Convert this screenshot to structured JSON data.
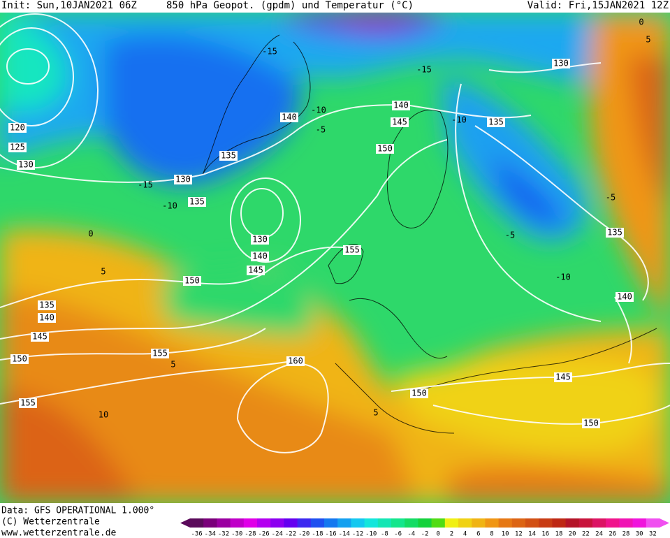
{
  "header": {
    "init": "Init: Sun,10JAN2021 06Z",
    "title": "850 hPa Geopot. (gpdm) und Temperatur (°C)",
    "valid": "Valid: Fri,15JAN2021 12Z"
  },
  "footer": {
    "source": "Data: GFS OPERATIONAL 1.000°",
    "copyright": "(C) Wetterzentrale",
    "website": "www.wetterzentrale.de"
  },
  "geopotential_labels": [
    "120",
    "125",
    "130",
    "130",
    "135",
    "135",
    "140",
    "140",
    "145",
    "135",
    "130",
    "150",
    "130",
    "140",
    "145",
    "150",
    "155",
    "135",
    "140",
    "135",
    "140",
    "145",
    "150",
    "155",
    "160",
    "155",
    "150",
    "145",
    "150"
  ],
  "temperature_labels": [
    "-15",
    "-15",
    "-10",
    "-5",
    "-10",
    "-15",
    "-10",
    "0",
    "5",
    "5",
    "10",
    "5",
    "-5",
    "-5",
    "-10",
    "0",
    "5"
  ],
  "colorbar": {
    "labels": [
      -36,
      -34,
      -32,
      -30,
      -28,
      -26,
      -24,
      -22,
      -20,
      -18,
      -16,
      -14,
      -12,
      -10,
      -8,
      -6,
      -4,
      -2,
      0,
      2,
      4,
      6,
      8,
      10,
      12,
      14,
      16,
      18,
      20,
      22,
      24,
      26,
      28,
      30,
      32
    ],
    "colors": [
      "#5a0a5a",
      "#7a007a",
      "#9a00a0",
      "#c000c8",
      "#e000e8",
      "#b400f0",
      "#8c00f0",
      "#6400f0",
      "#3c28f0",
      "#1e50f0",
      "#1478f0",
      "#14a0f0",
      "#14c8f0",
      "#14e6dc",
      "#14e6b4",
      "#14e68c",
      "#14dc64",
      "#14d23c",
      "#50dc14",
      "#f0f014",
      "#f0d214",
      "#f0b414",
      "#f09614",
      "#e67814",
      "#dc6414",
      "#d25014",
      "#c83c14",
      "#be2814",
      "#b41428",
      "#c8143c",
      "#dc1464",
      "#f0148c",
      "#f014b4",
      "#f014dc",
      "#f050f0"
    ]
  }
}
